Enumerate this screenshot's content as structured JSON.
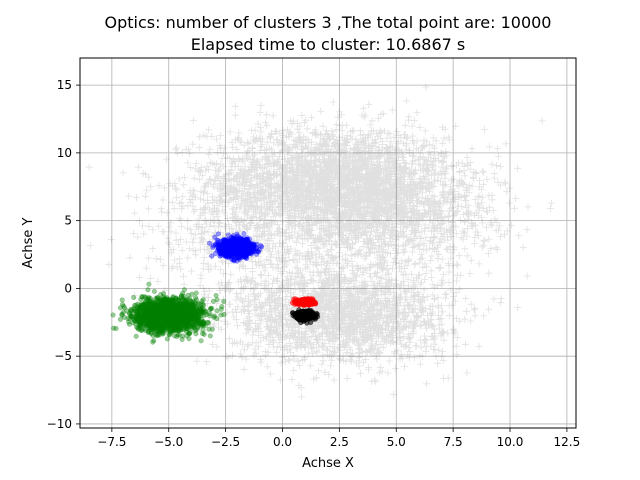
{
  "chart_data": {
    "type": "scatter",
    "title": "Optics: number of clusters 3 ,The total point are: 10000",
    "subtitle": "Elapsed time to cluster:  10.6867 s",
    "xlabel": "Achse X",
    "ylabel": "Achse Y",
    "xlim": [
      -8.9,
      12.9
    ],
    "ylim": [
      -10.3,
      17.0
    ],
    "xticks": [
      -7.5,
      -5.0,
      -2.5,
      0.0,
      2.5,
      5.0,
      7.5,
      10.0,
      12.5
    ],
    "xtick_labels": [
      "−7.5",
      "−5.0",
      "−2.5",
      "0.0",
      "2.5",
      "5.0",
      "7.5",
      "10.0",
      "12.5"
    ],
    "yticks": [
      -10,
      -5,
      0,
      5,
      10,
      15
    ],
    "ytick_labels": [
      "−10",
      "−5",
      "0",
      "5",
      "10",
      "15"
    ],
    "grid": true,
    "total_points": 10000,
    "series": [
      {
        "marker": "plus",
        "color": "#000000",
        "alpha": 0.12,
        "point_count": 6500,
        "distribution": "multiple diffuse gaussian blobs",
        "blobs": [
          {
            "center": [
              2.0,
              8.0
            ],
            "std": [
              2.6,
              2.0
            ],
            "weight": 0.38
          },
          {
            "center": [
              4.5,
              5.5
            ],
            "std": [
              2.4,
              2.2
            ],
            "weight": 0.22
          },
          {
            "center": [
              2.5,
              -2.0
            ],
            "std": [
              2.4,
              1.7
            ],
            "weight": 0.3
          },
          {
            "center": [
              -1.0,
              4.0
            ],
            "std": [
              2.5,
              2.5
            ],
            "weight": 0.1
          }
        ]
      },
      {
        "marker": "circle",
        "color": "#008000",
        "alpha": 0.4,
        "point_count": 1800,
        "center": [
          -5.0,
          -2.0
        ],
        "std": [
          0.75,
          0.6
        ]
      },
      {
        "marker": "circle",
        "color": "#0000ff",
        "alpha": 0.4,
        "point_count": 900,
        "center": [
          -2.0,
          3.0
        ],
        "std": [
          0.38,
          0.32
        ]
      },
      {
        "marker": "circle",
        "color": "#ff0000",
        "alpha": 0.6,
        "point_count": 300,
        "center": [
          1.0,
          -1.0
        ],
        "std": [
          0.18,
          0.1
        ]
      },
      {
        "marker": "circle",
        "color": "#000000",
        "alpha": 0.6,
        "point_count": 500,
        "center": [
          1.0,
          -2.0
        ],
        "std": [
          0.18,
          0.14
        ]
      }
    ]
  }
}
